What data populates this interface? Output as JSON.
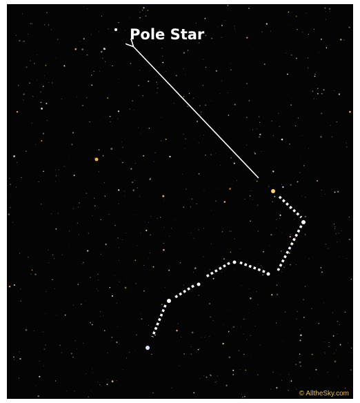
{
  "annotation": {
    "label": "Pole Star"
  },
  "credit": "© AlltheSky.com"
}
